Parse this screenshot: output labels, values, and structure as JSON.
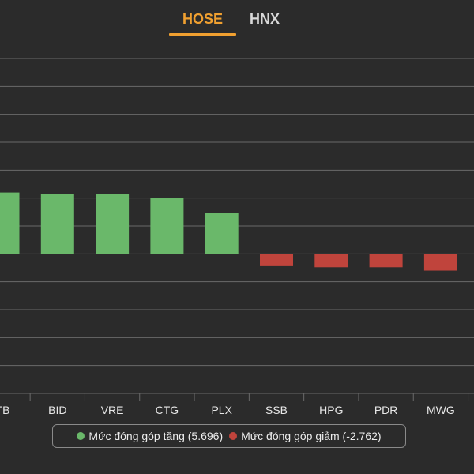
{
  "tabs": [
    {
      "label": "HOSE",
      "active": true
    },
    {
      "label": "HNX",
      "active": false
    }
  ],
  "colors": {
    "accent": "#f0a030",
    "positive": "#6ab86a",
    "negative": "#c0443c",
    "background": "#2b2b2b",
    "grid": "#6a6a6a"
  },
  "legend": {
    "positive_label": "Mức đóng góp tăng (5.696)",
    "negative_label": "Mức đóng góp giảm (-2.762)"
  },
  "chart_data": {
    "type": "bar",
    "categories": [
      "TB",
      "BID",
      "VRE",
      "CTG",
      "PLX",
      "SSB",
      "HPG",
      "PDR",
      "MWG"
    ],
    "values": [
      1.1,
      1.08,
      1.08,
      1.0,
      0.74,
      -0.22,
      -0.24,
      -0.24,
      -0.3
    ],
    "ylim": [
      -2.5,
      3.5
    ],
    "grid": true,
    "legend_position": "bottom"
  }
}
